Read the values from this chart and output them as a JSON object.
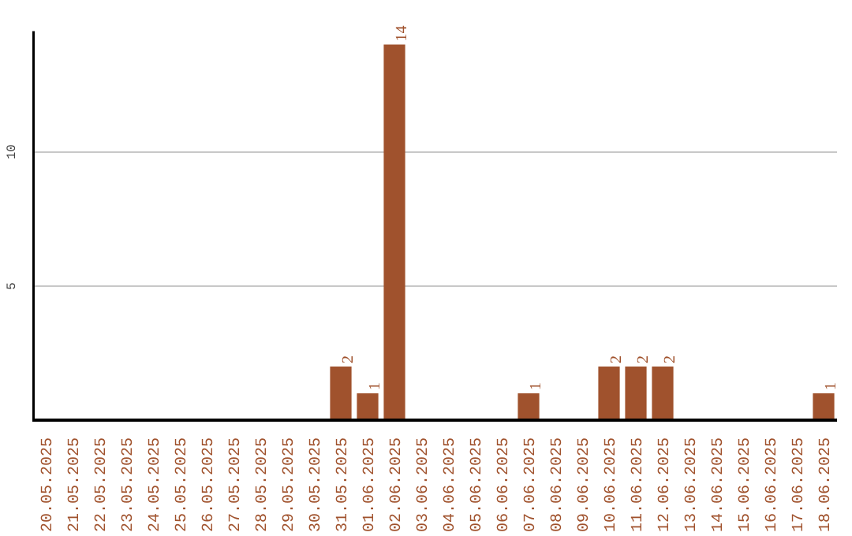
{
  "chart_data": {
    "type": "bar",
    "categories": [
      "20.05.2025",
      "21.05.2025",
      "22.05.2025",
      "23.05.2025",
      "24.05.2025",
      "25.05.2025",
      "26.05.2025",
      "27.05.2025",
      "28.05.2025",
      "29.05.2025",
      "30.05.2025",
      "31.05.2025",
      "01.06.2025",
      "02.06.2025",
      "03.06.2025",
      "04.06.2025",
      "05.06.2025",
      "06.06.2025",
      "07.06.2025",
      "08.06.2025",
      "09.06.2025",
      "10.06.2025",
      "11.06.2025",
      "12.06.2025",
      "13.06.2025",
      "14.06.2025",
      "15.06.2025",
      "16.06.2025",
      "17.06.2025",
      "18.06.2025"
    ],
    "values": [
      0,
      0,
      0,
      0,
      0,
      0,
      0,
      0,
      0,
      0,
      0,
      2,
      1,
      14,
      0,
      0,
      0,
      0,
      1,
      0,
      0,
      2,
      2,
      2,
      0,
      0,
      0,
      0,
      0,
      1
    ],
    "value_labels": [
      null,
      null,
      null,
      null,
      null,
      null,
      null,
      null,
      null,
      null,
      null,
      "2",
      "1",
      "14",
      null,
      null,
      null,
      null,
      "1",
      null,
      null,
      "2",
      "2",
      "2",
      null,
      null,
      null,
      null,
      null,
      "1"
    ],
    "color": "#a0522d",
    "ylim": [
      0,
      14.5
    ],
    "yticks": [
      5,
      10
    ],
    "grid": "y"
  }
}
